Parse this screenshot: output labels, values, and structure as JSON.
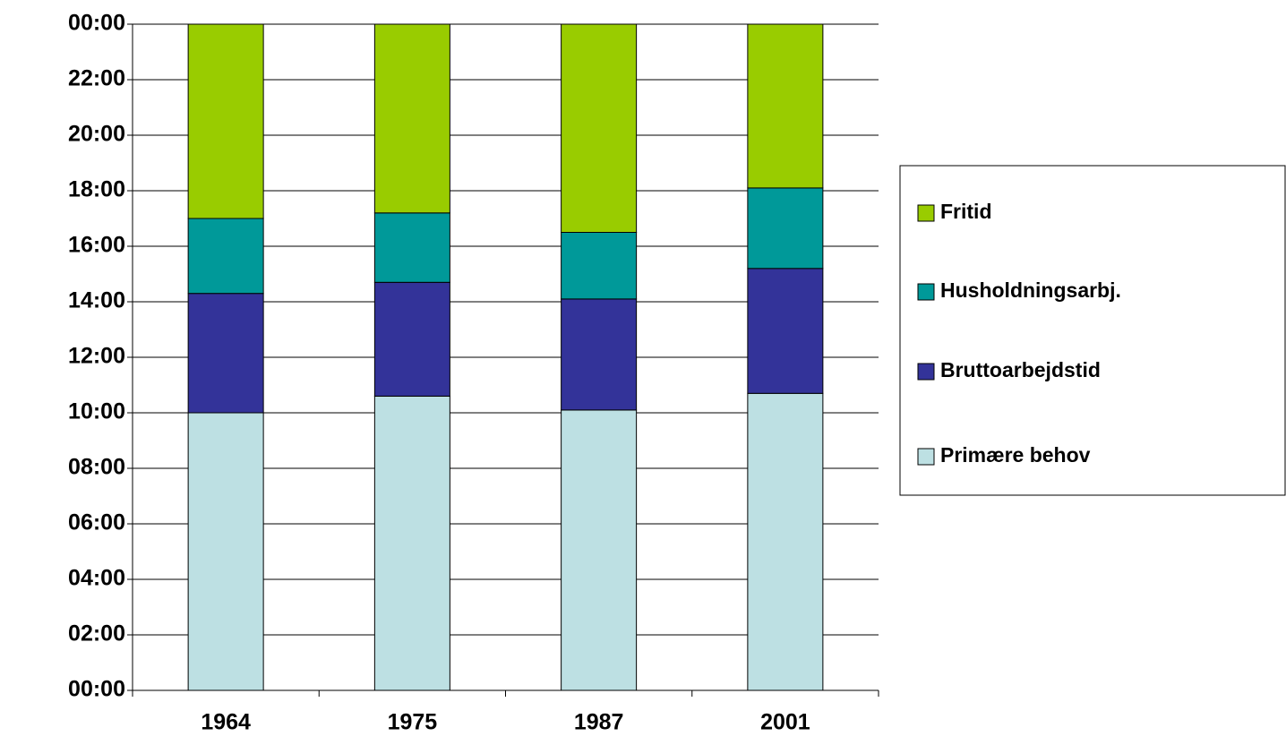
{
  "chart_data": {
    "type": "stacked_bar",
    "categories": [
      "1964",
      "1975",
      "1987",
      "2001"
    ],
    "series": [
      {
        "name": "Primære behov",
        "color": "#bde0e3",
        "values": [
          10.0,
          10.6,
          10.1,
          10.7
        ]
      },
      {
        "name": "Bruttoarbejdstid",
        "color": "#333399",
        "values": [
          4.3,
          4.1,
          4.0,
          4.5
        ]
      },
      {
        "name": "Husholdningsarbj.",
        "color": "#009999",
        "values": [
          2.7,
          2.5,
          2.4,
          2.9
        ]
      },
      {
        "name": "Fritid",
        "color": "#99cc00",
        "values": [
          7.0,
          6.8,
          7.5,
          5.9
        ]
      }
    ],
    "ylim": [
      0,
      24
    ],
    "yticks": [
      {
        "value": 0,
        "label": "00:00"
      },
      {
        "value": 2,
        "label": "02:00"
      },
      {
        "value": 4,
        "label": "04:00"
      },
      {
        "value": 6,
        "label": "06:00"
      },
      {
        "value": 8,
        "label": "08:00"
      },
      {
        "value": 10,
        "label": "10:00"
      },
      {
        "value": 12,
        "label": "12:00"
      },
      {
        "value": 14,
        "label": "14:00"
      },
      {
        "value": 16,
        "label": "16:00"
      },
      {
        "value": 18,
        "label": "18:00"
      },
      {
        "value": 20,
        "label": "20:00"
      },
      {
        "value": 22,
        "label": "22:00"
      },
      {
        "value": 24,
        "label": "00:00"
      }
    ],
    "grid": true,
    "legend": "right"
  }
}
